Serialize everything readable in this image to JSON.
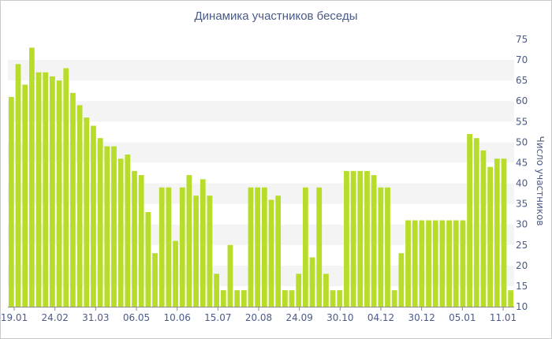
{
  "chart_data": {
    "type": "bar",
    "title": "Динамика участников беседы",
    "ylabel": "Число участников",
    "xlabel": "",
    "ylim": [
      10,
      75
    ],
    "y_ticks": [
      10,
      15,
      20,
      25,
      30,
      35,
      40,
      45,
      50,
      55,
      60,
      65,
      70,
      75
    ],
    "y_axis_position": "right",
    "grid": "alternating horizontal bands",
    "x_tick_labels": [
      "19.01",
      "24.02",
      "31.03",
      "06.05",
      "10.06",
      "15.07",
      "20.08",
      "24.09",
      "30.10",
      "04.12",
      "30.12",
      "05.01",
      "11.01"
    ],
    "bar_color": "#b7dc2a",
    "values": [
      61,
      69,
      64,
      73,
      67,
      67,
      66,
      65,
      68,
      62,
      59,
      56,
      54,
      51,
      49,
      49,
      46,
      47,
      43,
      42,
      33,
      23,
      39,
      39,
      26,
      39,
      42,
      37,
      41,
      37,
      18,
      14,
      25,
      14,
      14,
      39,
      39,
      39,
      36,
      37,
      14,
      14,
      18,
      39,
      22,
      39,
      18,
      14,
      14,
      43,
      43,
      43,
      43,
      42,
      39,
      39,
      14,
      23,
      31,
      31,
      31,
      31,
      31,
      31,
      31,
      31,
      31,
      52,
      51,
      48,
      44,
      46,
      46,
      14
    ]
  }
}
